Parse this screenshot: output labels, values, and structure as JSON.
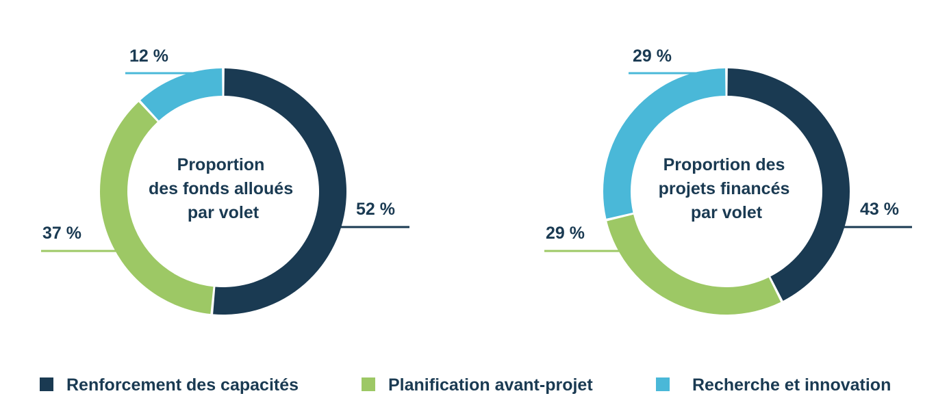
{
  "chart_data": [
    {
      "type": "pie",
      "title": "Proportion des fonds alloués par volet",
      "title_lines": [
        "Proportion",
        "des fonds alloués",
        "par volet"
      ],
      "categories": [
        "Renforcement des capacités",
        "Planification avant-projet",
        "Recherche et innovation"
      ],
      "values": [
        52,
        37,
        12
      ],
      "value_labels": [
        "52 %",
        "37 %",
        "12 %"
      ]
    },
    {
      "type": "pie",
      "title": "Proportion des projets financés par volet",
      "title_lines": [
        "Proportion des",
        "projets financés",
        "par volet"
      ],
      "categories": [
        "Renforcement des capacités",
        "Planification avant-projet",
        "Recherche et innovation"
      ],
      "values": [
        43,
        29,
        29
      ],
      "value_labels": [
        "43 %",
        "29 %",
        "29 %"
      ]
    }
  ],
  "legend": {
    "items": [
      {
        "label": "Renforcement des capacités",
        "color": "#1a3a52"
      },
      {
        "label": "Planification avant-projet",
        "color": "#9dc865"
      },
      {
        "label": "Recherche et innovation",
        "color": "#4ab8d8"
      }
    ]
  },
  "colors": {
    "text": "#1a3a52",
    "series": [
      "#1a3a52",
      "#9dc865",
      "#4ab8d8"
    ]
  }
}
